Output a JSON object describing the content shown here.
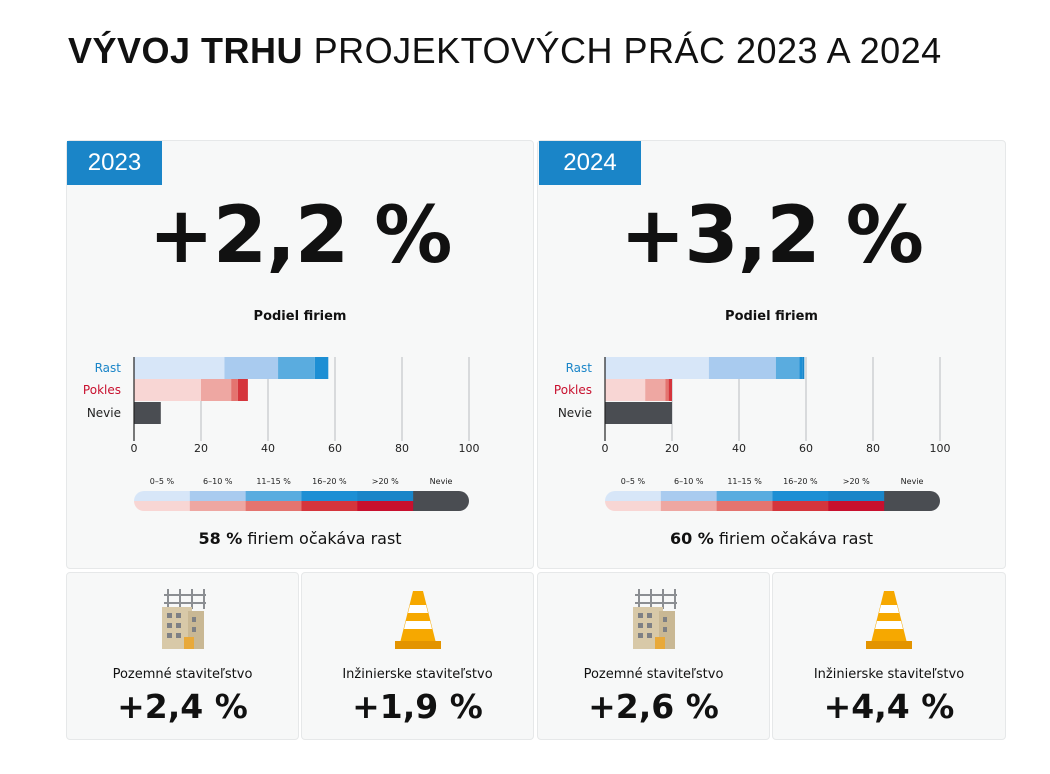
{
  "title": {
    "bold": "VÝVOJ TRHU",
    "rest": "PROJEKTOVÝCH PRÁC 2023 A 2024"
  },
  "colors": {
    "accent": "#1a85c8",
    "growth": [
      "#d7e6f8",
      "#a9cbef",
      "#5aacdf",
      "#1d8fd4"
    ],
    "decline": [
      "#f8d6d4",
      "#eea7a2",
      "#e4746f",
      "#d5353c"
    ],
    "unknown": "#4a4d52",
    "legend_top": [
      "#d7e6f8",
      "#a9cbef",
      "#5aacdf",
      "#1d8fd4",
      "#1a85c8",
      "#4a4d52"
    ],
    "legend_bottom": [
      "#f8d6d4",
      "#eea7a2",
      "#e4746f",
      "#d5353c",
      "#c8102e",
      "#4a4d52"
    ]
  },
  "panels": [
    {
      "year": "2023",
      "big_value": "+2,2 %",
      "subhead": "Podiel firiem",
      "expect_bold": "58 %",
      "expect_rest": "firiem očakáva rast",
      "cards": [
        {
          "label": "Pozemné staviteľstvo",
          "value": "+2,4 %",
          "icon": "building-icon"
        },
        {
          "label": "Inžinierske staviteľstvo",
          "value": "+1,9 %",
          "icon": "traffic-cone-icon"
        }
      ]
    },
    {
      "year": "2024",
      "big_value": "+3,2 %",
      "subhead": "Podiel firiem",
      "expect_bold": "60 %",
      "expect_rest": "firiem očakáva rast",
      "cards": [
        {
          "label": "Pozemné staviteľstvo",
          "value": "+2,6 %",
          "icon": "building-icon"
        },
        {
          "label": "Inžinierske staviteľstvo",
          "value": "+4,4 %",
          "icon": "traffic-cone-icon"
        }
      ]
    }
  ],
  "chart_data": [
    {
      "type": "bar",
      "orientation": "horizontal",
      "stacked": true,
      "title": "Podiel firiem",
      "categories": [
        "Rast",
        "Pokles",
        "Nevie"
      ],
      "xlim": [
        0,
        100
      ],
      "xticks": [
        0,
        20,
        40,
        60,
        80,
        100
      ],
      "series": [
        {
          "name": "0–5 %",
          "values": [
            27,
            20,
            0
          ]
        },
        {
          "name": "6–10 %",
          "values": [
            16,
            9,
            0
          ]
        },
        {
          "name": "11–15 %",
          "values": [
            11,
            2,
            0
          ]
        },
        {
          "name": "16–20 %",
          "values": [
            4,
            3,
            0
          ]
        },
        {
          "name": ">20 %",
          "values": [
            0,
            0,
            0
          ]
        },
        {
          "name": "Nevie",
          "values": [
            0,
            0,
            8
          ]
        }
      ],
      "legend": [
        "0–5 %",
        "6–10 %",
        "11–15 %",
        "16–20 %",
        ">20 %",
        "Nevie"
      ],
      "legend_position": "bottom",
      "grid": true
    },
    {
      "type": "bar",
      "orientation": "horizontal",
      "stacked": true,
      "title": "Podiel firiem",
      "categories": [
        "Rast",
        "Pokles",
        "Nevie"
      ],
      "xlim": [
        0,
        100
      ],
      "xticks": [
        0,
        20,
        40,
        60,
        80,
        100
      ],
      "series": [
        {
          "name": "0–5 %",
          "values": [
            31,
            12,
            0
          ]
        },
        {
          "name": "6–10 %",
          "values": [
            20,
            6,
            0
          ]
        },
        {
          "name": "11–15 %",
          "values": [
            7,
            1,
            0
          ]
        },
        {
          "name": "16–20 %",
          "values": [
            1,
            1,
            0
          ]
        },
        {
          "name": ">20 %",
          "values": [
            0.5,
            0,
            0
          ]
        },
        {
          "name": "Nevie",
          "values": [
            0,
            0,
            20
          ]
        }
      ],
      "legend": [
        "0–5 %",
        "6–10 %",
        "11–15 %",
        "16–20 %",
        ">20 %",
        "Nevie"
      ],
      "legend_position": "bottom",
      "grid": true
    }
  ]
}
